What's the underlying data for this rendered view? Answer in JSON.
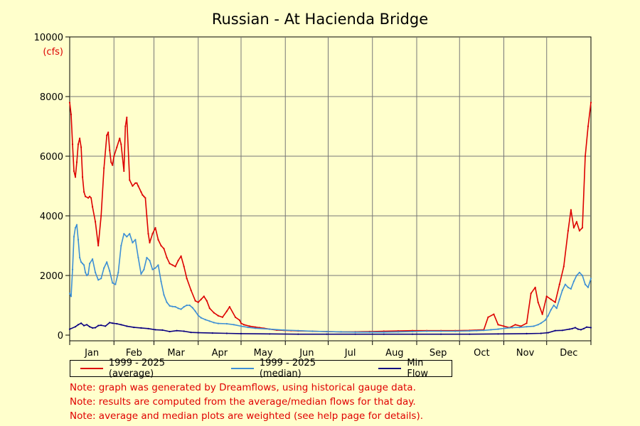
{
  "chart_data": {
    "type": "line",
    "title": "Russian - At Hacienda Bridge",
    "ylabel": "(cfs)",
    "xlabel": "",
    "ylim": [
      0,
      10000
    ],
    "yticks": [
      0,
      2000,
      4000,
      6000,
      8000,
      10000
    ],
    "xlim": [
      0,
      365
    ],
    "month_labels": [
      "Jan",
      "Feb",
      "Mar",
      "Apr",
      "May",
      "Jun",
      "Jul",
      "Aug",
      "Sep",
      "Oct",
      "Nov",
      "Dec"
    ],
    "month_starts": [
      0,
      31,
      59,
      90,
      120,
      151,
      181,
      212,
      243,
      273,
      304,
      334
    ],
    "grid": true,
    "legend_placement": "bottom",
    "series": [
      {
        "name": "1999 - 2025 (average)",
        "color": "#dd0000",
        "x": [
          0,
          1,
          2,
          3,
          4,
          5,
          6,
          7,
          8,
          9,
          10,
          11,
          13,
          14,
          15,
          16,
          18,
          20,
          22,
          24,
          26,
          27,
          28,
          29,
          30,
          31,
          33,
          35,
          36,
          38,
          39,
          40,
          42,
          44,
          46,
          47,
          48,
          50,
          51,
          52,
          53,
          54,
          55,
          56,
          58,
          60,
          62,
          64,
          66,
          68,
          70,
          72,
          74,
          76,
          78,
          80,
          82,
          85,
          88,
          90,
          92,
          94,
          96,
          98,
          101,
          104,
          107,
          110,
          112,
          116,
          119,
          120,
          122,
          126,
          130,
          133,
          136,
          140,
          145,
          150,
          155,
          160,
          170,
          180,
          190,
          200,
          210,
          220,
          230,
          240,
          250,
          260,
          270,
          280,
          290,
          293,
          297,
          300,
          304,
          308,
          312,
          316,
          320,
          323,
          326,
          328,
          331,
          334,
          337,
          340,
          343,
          346,
          349,
          351,
          353,
          355,
          357,
          359,
          361,
          363,
          365
        ],
        "values": [
          7800,
          7400,
          6400,
          5500,
          5300,
          5800,
          6400,
          6600,
          6300,
          5300,
          4800,
          4650,
          4600,
          4650,
          4600,
          4300,
          3800,
          3000,
          4000,
          5600,
          6700,
          6800,
          6200,
          5800,
          5700,
          6000,
          6300,
          6600,
          6400,
          5500,
          7000,
          7300,
          5200,
          5000,
          5100,
          5100,
          5000,
          4800,
          4700,
          4650,
          4600,
          4000,
          3400,
          3100,
          3400,
          3600,
          3200,
          3000,
          2900,
          2600,
          2400,
          2350,
          2300,
          2500,
          2650,
          2300,
          1900,
          1500,
          1150,
          1100,
          1200,
          1300,
          1150,
          900,
          750,
          650,
          600,
          800,
          950,
          600,
          500,
          400,
          350,
          300,
          270,
          250,
          230,
          200,
          170,
          160,
          150,
          140,
          130,
          120,
          110,
          110,
          120,
          130,
          140,
          150,
          150,
          150,
          150,
          160,
          180,
          600,
          700,
          350,
          300,
          250,
          350,
          300,
          400,
          1400,
          1600,
          1100,
          700,
          1300,
          1200,
          1100,
          1700,
          2300,
          3500,
          4200,
          3600,
          3800,
          3500,
          3600,
          6000,
          7000,
          7800
        ]
      },
      {
        "name": "1999 - 2025 (median)",
        "color": "#3d8fd5",
        "x": [
          0,
          1,
          2,
          3,
          4,
          5,
          6,
          7,
          8,
          9,
          10,
          11,
          12,
          13,
          14,
          16,
          18,
          20,
          22,
          24,
          26,
          28,
          30,
          32,
          34,
          36,
          38,
          40,
          42,
          44,
          46,
          48,
          50,
          52,
          54,
          56,
          58,
          60,
          62,
          64,
          66,
          68,
          70,
          72,
          74,
          76,
          78,
          80,
          82,
          84,
          86,
          88,
          90,
          92,
          95,
          98,
          101,
          104,
          110,
          115,
          120,
          125,
          130,
          140,
          150,
          160,
          170,
          180,
          190,
          200,
          210,
          220,
          230,
          240,
          250,
          260,
          270,
          280,
          285,
          290,
          295,
          300,
          305,
          310,
          315,
          320,
          325,
          328,
          330,
          333,
          335,
          337,
          339,
          341,
          343,
          345,
          347,
          349,
          351,
          353,
          355,
          357,
          359,
          361,
          363,
          365
        ],
        "values": [
          1400,
          1300,
          2200,
          3300,
          3600,
          3700,
          3200,
          2600,
          2450,
          2400,
          2350,
          2100,
          2000,
          2050,
          2400,
          2550,
          2100,
          1850,
          1900,
          2250,
          2450,
          2150,
          1750,
          1700,
          2100,
          3000,
          3400,
          3300,
          3400,
          3100,
          3200,
          2600,
          2050,
          2200,
          2600,
          2500,
          2200,
          2250,
          2350,
          1800,
          1350,
          1100,
          980,
          960,
          950,
          900,
          870,
          950,
          1000,
          1000,
          920,
          800,
          660,
          580,
          520,
          470,
          420,
          390,
          380,
          350,
          300,
          260,
          230,
          200,
          170,
          150,
          130,
          120,
          110,
          100,
          100,
          100,
          110,
          120,
          130,
          130,
          130,
          140,
          150,
          160,
          180,
          200,
          230,
          250,
          260,
          280,
          300,
          350,
          400,
          500,
          650,
          850,
          1000,
          900,
          1200,
          1500,
          1700,
          1600,
          1550,
          1800,
          2000,
          2100,
          2000,
          1700,
          1600,
          1900
        ]
      },
      {
        "name": "Min Flow",
        "color": "#0a0080",
        "x": [
          0,
          4,
          6,
          8,
          10,
          12,
          14,
          16,
          18,
          20,
          22,
          25,
          28,
          30,
          33,
          36,
          40,
          45,
          50,
          55,
          60,
          65,
          70,
          75,
          80,
          85,
          90,
          100,
          110,
          120,
          140,
          160,
          180,
          200,
          220,
          240,
          260,
          280,
          300,
          320,
          330,
          335,
          340,
          345,
          350,
          352,
          354,
          356,
          358,
          360,
          362,
          365
        ],
        "values": [
          200,
          280,
          350,
          400,
          320,
          350,
          280,
          240,
          250,
          320,
          330,
          300,
          420,
          400,
          380,
          350,
          300,
          260,
          240,
          220,
          180,
          170,
          120,
          150,
          130,
          90,
          80,
          70,
          60,
          50,
          40,
          30,
          30,
          30,
          30,
          30,
          30,
          30,
          40,
          50,
          60,
          80,
          150,
          160,
          200,
          220,
          250,
          200,
          180,
          220,
          270,
          250
        ]
      }
    ],
    "notes": [
      "Note: graph was generated by Dreamflows, using historical gauge data.",
      "Note: results are computed from the average/median flows for that day.",
      "Note: average and median plots are weighted (see help page for details)."
    ]
  }
}
